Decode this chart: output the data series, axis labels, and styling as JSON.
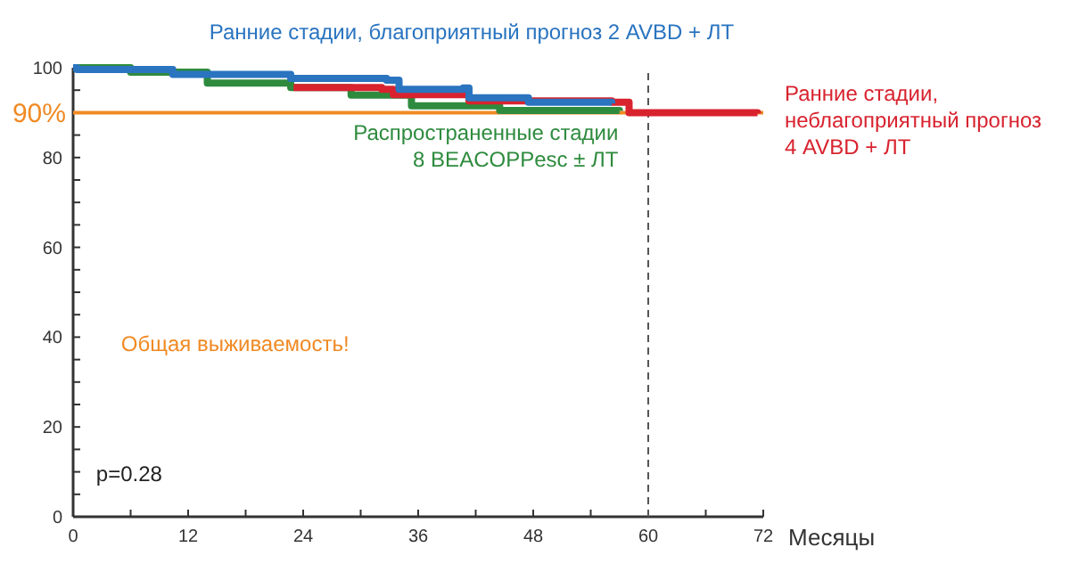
{
  "chart_data": {
    "type": "step",
    "xlabel": "Месяцы",
    "xlim": [
      0,
      72
    ],
    "xticks": [
      0,
      {
        "value": 6,
        "label": null
      },
      12,
      {
        "value": 18,
        "label": null
      },
      24,
      {
        "value": 30,
        "label": null
      },
      36,
      {
        "value": 42,
        "label": null
      },
      48,
      {
        "value": 54,
        "label": null
      },
      60,
      {
        "value": 66,
        "label": null
      },
      72
    ],
    "ylim": [
      0,
      100
    ],
    "yticks": [
      0,
      {
        "value": 5,
        "label": null
      },
      {
        "value": 10,
        "label": null
      },
      {
        "value": 15,
        "label": null
      },
      20,
      {
        "value": 25,
        "label": null
      },
      {
        "value": 30,
        "label": null
      },
      {
        "value": 35,
        "label": null
      },
      40,
      {
        "value": 45,
        "label": null
      },
      {
        "value": 50,
        "label": null
      },
      {
        "value": 55,
        "label": null
      },
      60,
      {
        "value": 65,
        "label": null
      },
      {
        "value": 70,
        "label": null
      },
      {
        "value": 75,
        "label": null
      },
      80,
      {
        "value": 85,
        "label": null
      },
      {
        "value": 90,
        "label": null
      },
      {
        "value": 95,
        "label": null
      },
      100
    ],
    "series": [
      {
        "name": "Распространенные стадии 8 BEACOPPesc ± ЛТ",
        "color": "#2e8b3e",
        "x": [
          0,
          6,
          14,
          22.7,
          29,
          35.3,
          44.5,
          57
        ],
        "values": [
          100,
          99,
          96.6,
          95.6,
          93.9,
          91.5,
          90.5,
          90.4
        ]
      },
      {
        "name": "Ранние стадии, неблагоприятный прогноз 4 AVBD + ЛТ",
        "color": "#d8232f",
        "x": [
          23,
          32.2,
          33.4,
          41.3,
          56.2,
          58,
          71.4
        ],
        "values": [
          95.6,
          95.2,
          94,
          92.6,
          92.3,
          90,
          89.8
        ]
      },
      {
        "name": "Ранние стадии, благоприятный прогноз 2 AVBD + ЛТ",
        "color": "#2a74c0",
        "x": [
          0,
          0.4,
          10.4,
          22.7,
          32.7,
          34,
          40.7,
          41.3,
          47.5,
          56.2
        ],
        "values": [
          100,
          99.6,
          98.5,
          97.6,
          97.2,
          95.2,
          95.5,
          93.3,
          92.3,
          92
        ]
      }
    ],
    "ref_lines": [
      {
        "axis": "y",
        "value": 90,
        "label": "90%",
        "color": "#f08a24",
        "line_style": "solid"
      },
      {
        "axis": "x",
        "value": 60,
        "color": "#555555",
        "line_style": "dashed"
      }
    ],
    "annotations": [
      "Общая выживаемость!",
      "p=0.28"
    ],
    "grid": false,
    "line_style": "solid"
  }
}
